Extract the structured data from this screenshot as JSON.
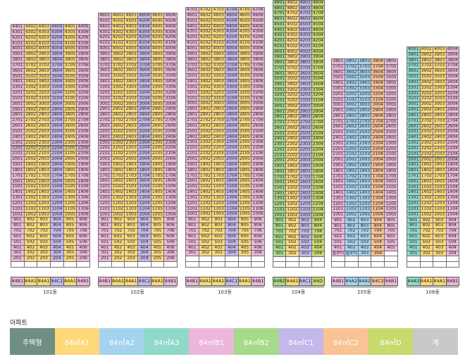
{
  "colors": {
    "84A1": "#fdd97a",
    "84A2": "#a5d3ef",
    "84A3": "#8fd9c9",
    "84B1": "#ecb7da",
    "84B2": "#a7d98a",
    "84C1": "#c4b8ea",
    "84C2": "#f9c394",
    "84D": "#c9da6c",
    "legend_head": "#6f8f84",
    "legend_etc": "#c9c9c9"
  },
  "buildings": [
    {
      "name": "101동",
      "floors": [
        44,
        1
      ],
      "columns": [
        {
          "line": "01",
          "type": "84B1",
          "top": 44,
          "bottom": 2
        },
        {
          "line": "02",
          "type": "84A1",
          "top": 44,
          "bottom": 2
        },
        {
          "line": "03",
          "type": "84A1",
          "top": 44,
          "bottom": 2
        },
        {
          "line": "04",
          "type": "84C1",
          "top": 44,
          "bottom": 2
        },
        {
          "line": "05",
          "type": "84A1",
          "top": 44,
          "bottom": 2
        },
        {
          "line": "06",
          "type": "84B1",
          "top": 44,
          "bottom": 2
        }
      ],
      "type_labels": [
        "84B1",
        "84A1",
        "84A1",
        "84C1",
        "84A1",
        "84B1"
      ]
    },
    {
      "name": "102동",
      "floors": [
        46,
        1
      ],
      "columns": [
        {
          "line": "01",
          "type": "84B1",
          "top": 46,
          "bottom": 2
        },
        {
          "line": "02",
          "type": "84A1",
          "top": 46,
          "bottom": 2
        },
        {
          "line": "03",
          "type": "84A1",
          "top": 46,
          "bottom": 2
        },
        {
          "line": "04",
          "type": "84C1",
          "top": 46,
          "bottom": 2
        },
        {
          "line": "05",
          "type": "84A1",
          "top": 46,
          "bottom": 2
        },
        {
          "line": "06",
          "type": "84B1",
          "top": 46,
          "bottom": 2
        }
      ],
      "type_labels": [
        "84B1",
        "84A1",
        "84A1",
        "84C1",
        "84A1",
        "84B1"
      ]
    },
    {
      "name": "103동",
      "floors": [
        47,
        1
      ],
      "columns": [
        {
          "line": "01",
          "type": "84B1",
          "top": 47,
          "bottom": 3
        },
        {
          "line": "02",
          "type": "84A1",
          "top": 47,
          "bottom": 3
        },
        {
          "line": "03",
          "type": "84A1",
          "top": 47,
          "bottom": 3
        },
        {
          "line": "04",
          "type": "84C1",
          "top": 47,
          "bottom": 3
        },
        {
          "line": "05",
          "type": "84A1",
          "top": 47,
          "bottom": 3
        },
        {
          "line": "06",
          "type": "84B1",
          "top": 47,
          "bottom": 3
        }
      ],
      "type_labels": [
        "84B1",
        "84A1",
        "84A1",
        "84C1",
        "84A1",
        "84B1"
      ]
    },
    {
      "name": "104동",
      "floors": [
        49,
        1
      ],
      "columns": [
        {
          "line": "01",
          "type": "84B2",
          "top": 49,
          "bottom": 3
        },
        {
          "line": "02",
          "type": "84A1",
          "top": 49,
          "bottom": 3
        },
        {
          "line": "03",
          "type": "84C1",
          "top": 49,
          "bottom": 3
        },
        {
          "line": "04",
          "type": "84D",
          "top": 49,
          "bottom": 3
        }
      ],
      "type_labels": [
        "84B2",
        "84A1",
        "84C1",
        "84D"
      ]
    },
    {
      "name": "105동",
      "floors": [
        38,
        1
      ],
      "columns": [
        {
          "line": "01",
          "type": "84B1",
          "top": 38,
          "bottom": 4
        },
        {
          "line": "02",
          "type": "84A2",
          "top": 38,
          "bottom": 4
        },
        {
          "line": "03",
          "type": "84A2",
          "top": 38,
          "bottom": 3
        },
        {
          "line": "04",
          "type": "84C2",
          "top": 38,
          "bottom": 3
        },
        {
          "line": "05",
          "type": "84B1",
          "top": 38,
          "bottom": 4
        }
      ],
      "special_cells": {
        "col_0_floor_3": "필로티",
        "col_1_floor_3": "필로티"
      },
      "type_labels": [
        "84B1",
        "84A2",
        "84A2",
        "84C2",
        "84B1"
      ]
    },
    {
      "name": "106동",
      "floors": [
        40,
        1
      ],
      "columns": [
        {
          "line": "01",
          "type": "84A3",
          "top": 40,
          "bottom": 3
        },
        {
          "line": "02",
          "type": "84A1",
          "top": 40,
          "bottom": 3
        },
        {
          "line": "03",
          "type": "84A1",
          "top": 40,
          "bottom": 3
        },
        {
          "line": "04",
          "type": "84B1",
          "top": 40,
          "bottom": 3
        }
      ],
      "type_labels": [
        "84A3",
        "84A1",
        "84A1",
        "84B1"
      ]
    }
  ],
  "legend": {
    "title": "아파트",
    "items": [
      {
        "label": "주택형",
        "color_key": "legend_head"
      },
      {
        "label": "84㎡A1",
        "color_key": "84A1"
      },
      {
        "label": "84㎡A2",
        "color_key": "84A2"
      },
      {
        "label": "84㎡A3",
        "color_key": "84A3"
      },
      {
        "label": "84㎡B1",
        "color_key": "84B1"
      },
      {
        "label": "84㎡B2",
        "color_key": "84B2"
      },
      {
        "label": "84㎡C1",
        "color_key": "84C1"
      },
      {
        "label": "84㎡C2",
        "color_key": "84C2"
      },
      {
        "label": "84㎡D",
        "color_key": "84D"
      },
      {
        "label": "계",
        "color_key": "legend_etc"
      }
    ]
  }
}
